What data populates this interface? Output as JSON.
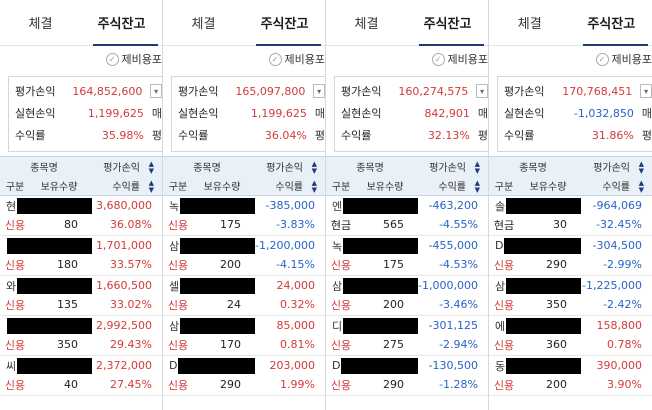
{
  "tabs": {
    "executed": "체결",
    "balance": "주식잔고"
  },
  "fee_label": "제비용포",
  "summary_labels": {
    "eval_pl": "평가손익",
    "realized_pl": "실현손익",
    "rate": "수익률"
  },
  "side_labels": {
    "sell": "매",
    "eval": "평"
  },
  "table_headers": {
    "name": "종목명",
    "eval_pl": "평가손익",
    "type": "구분",
    "qty": "보유수량",
    "rate": "수익률"
  },
  "colors": {
    "profit": "#d43a3a",
    "loss": "#2a63c9",
    "header_bg": "#eaf0f8",
    "tab_underline": "#1f3b7a"
  },
  "panels": [
    {
      "summary": {
        "eval_pl": "164,852,600",
        "realized_pl": "1,199,625",
        "rate": "35.98%"
      },
      "rows": [
        {
          "prefix": "현",
          "pl": "3,680,000",
          "type": "신용",
          "qty": "80",
          "rate": "36.08%",
          "dir": "up"
        },
        {
          "prefix": "",
          "pl": "1,701,000",
          "type": "신용",
          "qty": "180",
          "rate": "33.57%",
          "dir": "up"
        },
        {
          "prefix": "와",
          "pl": "1,660,500",
          "type": "신용",
          "qty": "135",
          "rate": "33.02%",
          "dir": "up"
        },
        {
          "prefix": "",
          "pl": "2,992,500",
          "type": "신용",
          "qty": "350",
          "rate": "29.43%",
          "dir": "up"
        },
        {
          "prefix": "씨",
          "pl": "2,372,000",
          "type": "신용",
          "qty": "40",
          "rate": "27.45%",
          "dir": "up"
        }
      ]
    },
    {
      "summary": {
        "eval_pl": "165,097,800",
        "realized_pl": "1,199,625",
        "rate": "36.04%"
      },
      "rows": [
        {
          "prefix": "녹",
          "pl": "-385,000",
          "type": "신용",
          "qty": "175",
          "rate": "-3.83%",
          "dir": "down"
        },
        {
          "prefix": "삼",
          "pl": "-1,200,000",
          "type": "신용",
          "qty": "200",
          "rate": "-4.15%",
          "dir": "down"
        },
        {
          "prefix": "셀",
          "pl": "24,000",
          "type": "신용",
          "qty": "24",
          "rate": "0.32%",
          "dir": "up"
        },
        {
          "prefix": "삼",
          "pl": "85,000",
          "type": "신용",
          "qty": "170",
          "rate": "0.81%",
          "dir": "up"
        },
        {
          "prefix": "D",
          "pl": "203,000",
          "type": "신용",
          "qty": "290",
          "rate": "1.99%",
          "dir": "up"
        }
      ]
    },
    {
      "summary": {
        "eval_pl": "160,274,575",
        "realized_pl": "842,901",
        "rate": "32.13%"
      },
      "rows": [
        {
          "prefix": "엔",
          "pl": "-463,200",
          "type": "현금",
          "qty": "565",
          "rate": "-4.55%",
          "dir": "down"
        },
        {
          "prefix": "녹",
          "pl": "-455,000",
          "type": "신용",
          "qty": "175",
          "rate": "-4.53%",
          "dir": "down"
        },
        {
          "prefix": "삼",
          "pl": "-1,000,000",
          "type": "신용",
          "qty": "200",
          "rate": "-3.46%",
          "dir": "down"
        },
        {
          "prefix": "디",
          "pl": "-301,125",
          "type": "신용",
          "qty": "275",
          "rate": "-2.94%",
          "dir": "down"
        },
        {
          "prefix": "D",
          "pl": "-130,500",
          "type": "신용",
          "qty": "290",
          "rate": "-1.28%",
          "dir": "down"
        }
      ]
    },
    {
      "summary": {
        "eval_pl": "170,768,451",
        "realized_pl": "-1,032,850",
        "rate": "31.86%"
      },
      "rows": [
        {
          "prefix": "솔",
          "pl": "-964,069",
          "type": "현금",
          "qty": "30",
          "rate": "-32.45%",
          "dir": "down"
        },
        {
          "prefix": "D",
          "pl": "-304,500",
          "type": "신용",
          "qty": "290",
          "rate": "-2.99%",
          "dir": "down"
        },
        {
          "prefix": "삼",
          "pl": "-1,225,000",
          "type": "신용",
          "qty": "350",
          "rate": "-2.42%",
          "dir": "down"
        },
        {
          "prefix": "에",
          "pl": "158,800",
          "type": "신용",
          "qty": "360",
          "rate": "0.78%",
          "dir": "up"
        },
        {
          "prefix": "동",
          "pl": "390,000",
          "type": "신용",
          "qty": "200",
          "rate": "3.90%",
          "dir": "up"
        }
      ]
    }
  ]
}
